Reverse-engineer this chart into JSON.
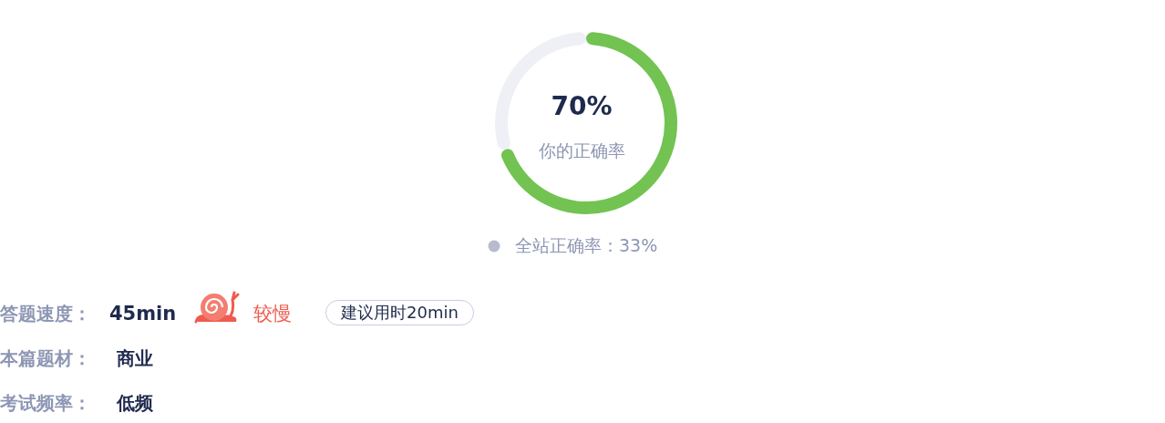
{
  "chart_data": {
    "type": "donut",
    "categories": [
      null,
      null
    ],
    "values": [
      70,
      30
    ],
    "colors": [
      "#72c351",
      "#eef0f5"
    ],
    "annotations": [
      "70%",
      "你的正确率",
      "全站正确率：33%",
      "答题速度：",
      "45min",
      "较慢",
      "建议用时20min",
      "本篇题材：",
      "商业",
      "考试频率：",
      "低频"
    ]
  }
}
